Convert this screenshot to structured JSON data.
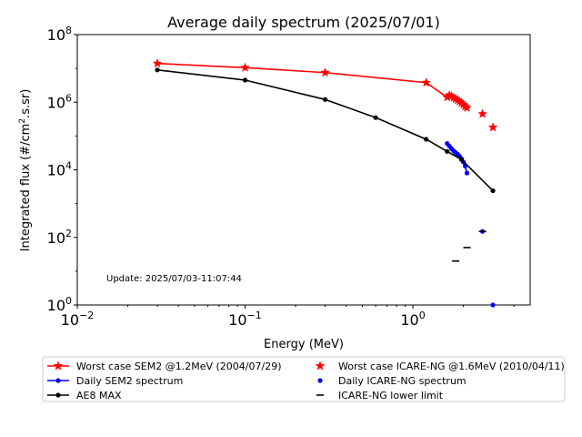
{
  "chart_data": {
    "type": "line",
    "title": "Average daily spectrum (2025/07/01)",
    "xlabel": "Energy (MeV)",
    "ylabel": "Integrated flux (#/cm².s.sr)",
    "xscale": "log",
    "yscale": "log",
    "xlim": [
      0.01,
      5
    ],
    "ylim": [
      1,
      100000000
    ],
    "x_ticks": [
      {
        "value": 0.01,
        "base": "10",
        "exp": "−2"
      },
      {
        "value": 0.1,
        "base": "10",
        "exp": "−1"
      },
      {
        "value": 1,
        "base": "10",
        "exp": "0"
      }
    ],
    "y_ticks": [
      {
        "value": 1,
        "base": "10",
        "exp": "0"
      },
      {
        "value": 100,
        "base": "10",
        "exp": "2"
      },
      {
        "value": 10000,
        "base": "10",
        "exp": "4"
      },
      {
        "value": 1000000,
        "base": "10",
        "exp": "6"
      },
      {
        "value": 100000000,
        "base": "10",
        "exp": "8"
      }
    ],
    "grid": false,
    "legend_position": "bottom",
    "annotation": "Update: 2025/07/03-11:07:44",
    "series": [
      {
        "name": "Worst case SEM2 @1.2MeV (2004/07/29)",
        "kind": "line",
        "marker": "star",
        "color": "#ff0000",
        "x": [
          0.03,
          0.1,
          0.3,
          1.2,
          1.6,
          1.65,
          1.7,
          1.75,
          1.8,
          1.85,
          1.9,
          1.95,
          2.0,
          2.05,
          2.1
        ],
        "y": [
          14000000,
          10500000,
          7500000,
          3800000,
          1400000,
          1600000,
          1500000,
          1350000,
          1250000,
          1150000,
          1050000,
          950000,
          850000,
          750000,
          680000
        ]
      },
      {
        "name": "Daily SEM2 spectrum",
        "kind": "line",
        "marker": "dot",
        "color": "#0000ff",
        "x": [
          1.6,
          1.65,
          1.7,
          1.75,
          1.8,
          1.85,
          1.9,
          1.95,
          2.0,
          2.05,
          2.1
        ],
        "y": [
          60000,
          50000,
          42000,
          36000,
          32000,
          29000,
          25000,
          21000,
          17000,
          13000,
          8000
        ]
      },
      {
        "name": "AE8 MAX",
        "kind": "line",
        "marker": "dot",
        "color": "#000000",
        "x": [
          0.03,
          0.1,
          0.3,
          0.6,
          1.2,
          1.6,
          1.95,
          3.0
        ],
        "y": [
          9000000,
          4500000,
          1200000,
          350000,
          80000,
          35000,
          20000,
          2400
        ]
      },
      {
        "name": "Worst case ICARE-NG @1.6MeV (2010/04/11)",
        "kind": "scatter",
        "marker": "star",
        "color": "#ff0000",
        "x": [
          2.6,
          3.0
        ],
        "y": [
          450000,
          180000
        ]
      },
      {
        "name": "Daily ICARE-NG spectrum",
        "kind": "scatter",
        "marker": "dot",
        "color": "#0000ff",
        "x": [
          2.6,
          3.0
        ],
        "y": [
          150,
          1
        ]
      },
      {
        "name": "ICARE-NG lower limit",
        "kind": "scatter",
        "marker": "hline",
        "color": "#000000",
        "x": [
          1.8,
          2.1,
          2.6
        ],
        "y": [
          20,
          50,
          150
        ]
      }
    ]
  }
}
